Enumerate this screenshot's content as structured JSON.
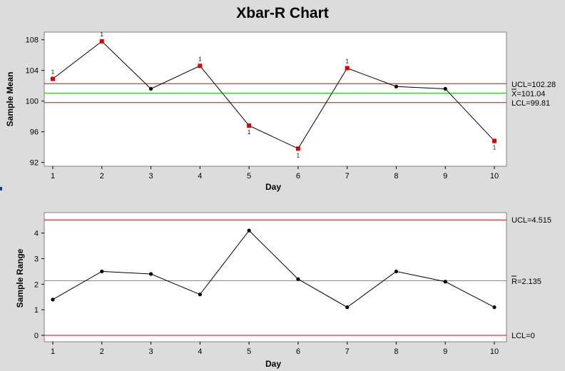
{
  "chart_data": [
    {
      "type": "line",
      "title": "Xbar-R Chart",
      "xlabel": "Day",
      "ylabel": "Sample Mean",
      "x": [
        1,
        2,
        3,
        4,
        5,
        6,
        7,
        8,
        9,
        10
      ],
      "values": [
        102.9,
        107.8,
        101.6,
        104.6,
        96.8,
        93.8,
        104.3,
        101.9,
        101.6,
        94.8
      ],
      "out_of_control_flags": [
        "1",
        "1",
        "",
        "1",
        "1",
        "1",
        "1",
        "",
        "",
        "1"
      ],
      "ylim": [
        91.5,
        109
      ],
      "yticks": [
        92,
        96,
        100,
        104,
        108
      ],
      "xticks": [
        1,
        2,
        3,
        4,
        5,
        6,
        7,
        8,
        9,
        10
      ],
      "center_line": 101.04,
      "ucl": 102.28,
      "lcl": 99.81,
      "ucl_label": "UCL=102.28",
      "center_label": "X=101.04",
      "lcl_label": "LCL=99.81",
      "colors": {
        "limits": "#dd0000",
        "center": "#22cc22",
        "line": "#000000",
        "flagged_point": "#dd0000",
        "point": "#000000"
      }
    },
    {
      "type": "line",
      "xlabel": "Day",
      "ylabel": "Sample Range",
      "x": [
        1,
        2,
        3,
        4,
        5,
        6,
        7,
        8,
        9,
        10
      ],
      "values": [
        1.4,
        2.5,
        2.4,
        1.6,
        4.1,
        2.2,
        1.1,
        2.5,
        2.1,
        1.1
      ],
      "ylim": [
        -0.25,
        4.8
      ],
      "yticks": [
        0,
        1,
        2,
        3,
        4
      ],
      "xticks": [
        1,
        2,
        3,
        4,
        5,
        6,
        7,
        8,
        9,
        10
      ],
      "center_line": 2.135,
      "ucl": 4.515,
      "lcl": 0,
      "ucl_label": "UCL=4.515",
      "center_label": "R=2.135",
      "lcl_label": "LCL=0",
      "colors": {
        "limits": "#dd0000",
        "center": "#22cc22",
        "line": "#000000",
        "point": "#000000"
      }
    }
  ]
}
